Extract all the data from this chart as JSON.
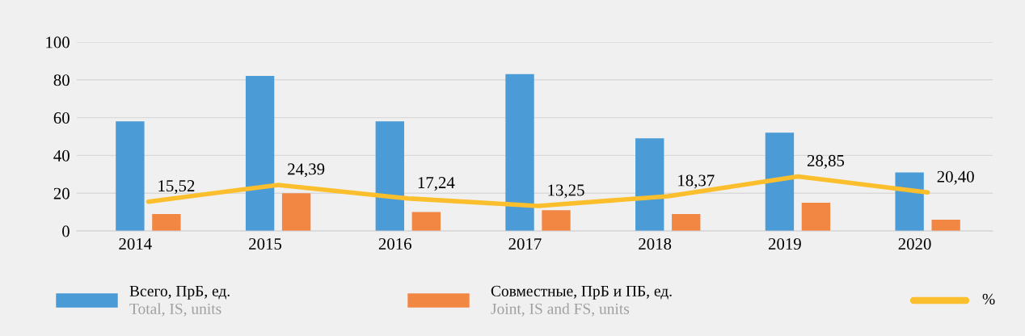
{
  "chart_data": {
    "type": "bar",
    "categories": [
      "2014",
      "2015",
      "2016",
      "2017",
      "2018",
      "2019",
      "2020"
    ],
    "series": [
      {
        "name": "Всего, ПрБ, ед.\nTotal, IS, units",
        "color": "#4a9bd6",
        "values": [
          58,
          82,
          58,
          83,
          49,
          52,
          31
        ]
      },
      {
        "name": "Совместные, ПрБ и ПБ, ед.\nJoint, IS and FS, units",
        "color": "#f28744",
        "values": [
          9,
          20,
          10,
          11,
          9,
          15,
          6
        ]
      },
      {
        "name": "%",
        "type": "line",
        "color": "#fbbf2d",
        "values": [
          15.52,
          24.39,
          17.24,
          13.25,
          18.37,
          28.85,
          20.4
        ],
        "value_labels": [
          "15,52",
          "24,39",
          "17,24",
          "13,25",
          "18,37",
          "28,85",
          "20,40"
        ]
      }
    ],
    "ylim": [
      0,
      100
    ],
    "yticks": [
      0,
      20,
      40,
      60,
      80,
      100
    ],
    "grid": "y",
    "legend": "bottom"
  }
}
